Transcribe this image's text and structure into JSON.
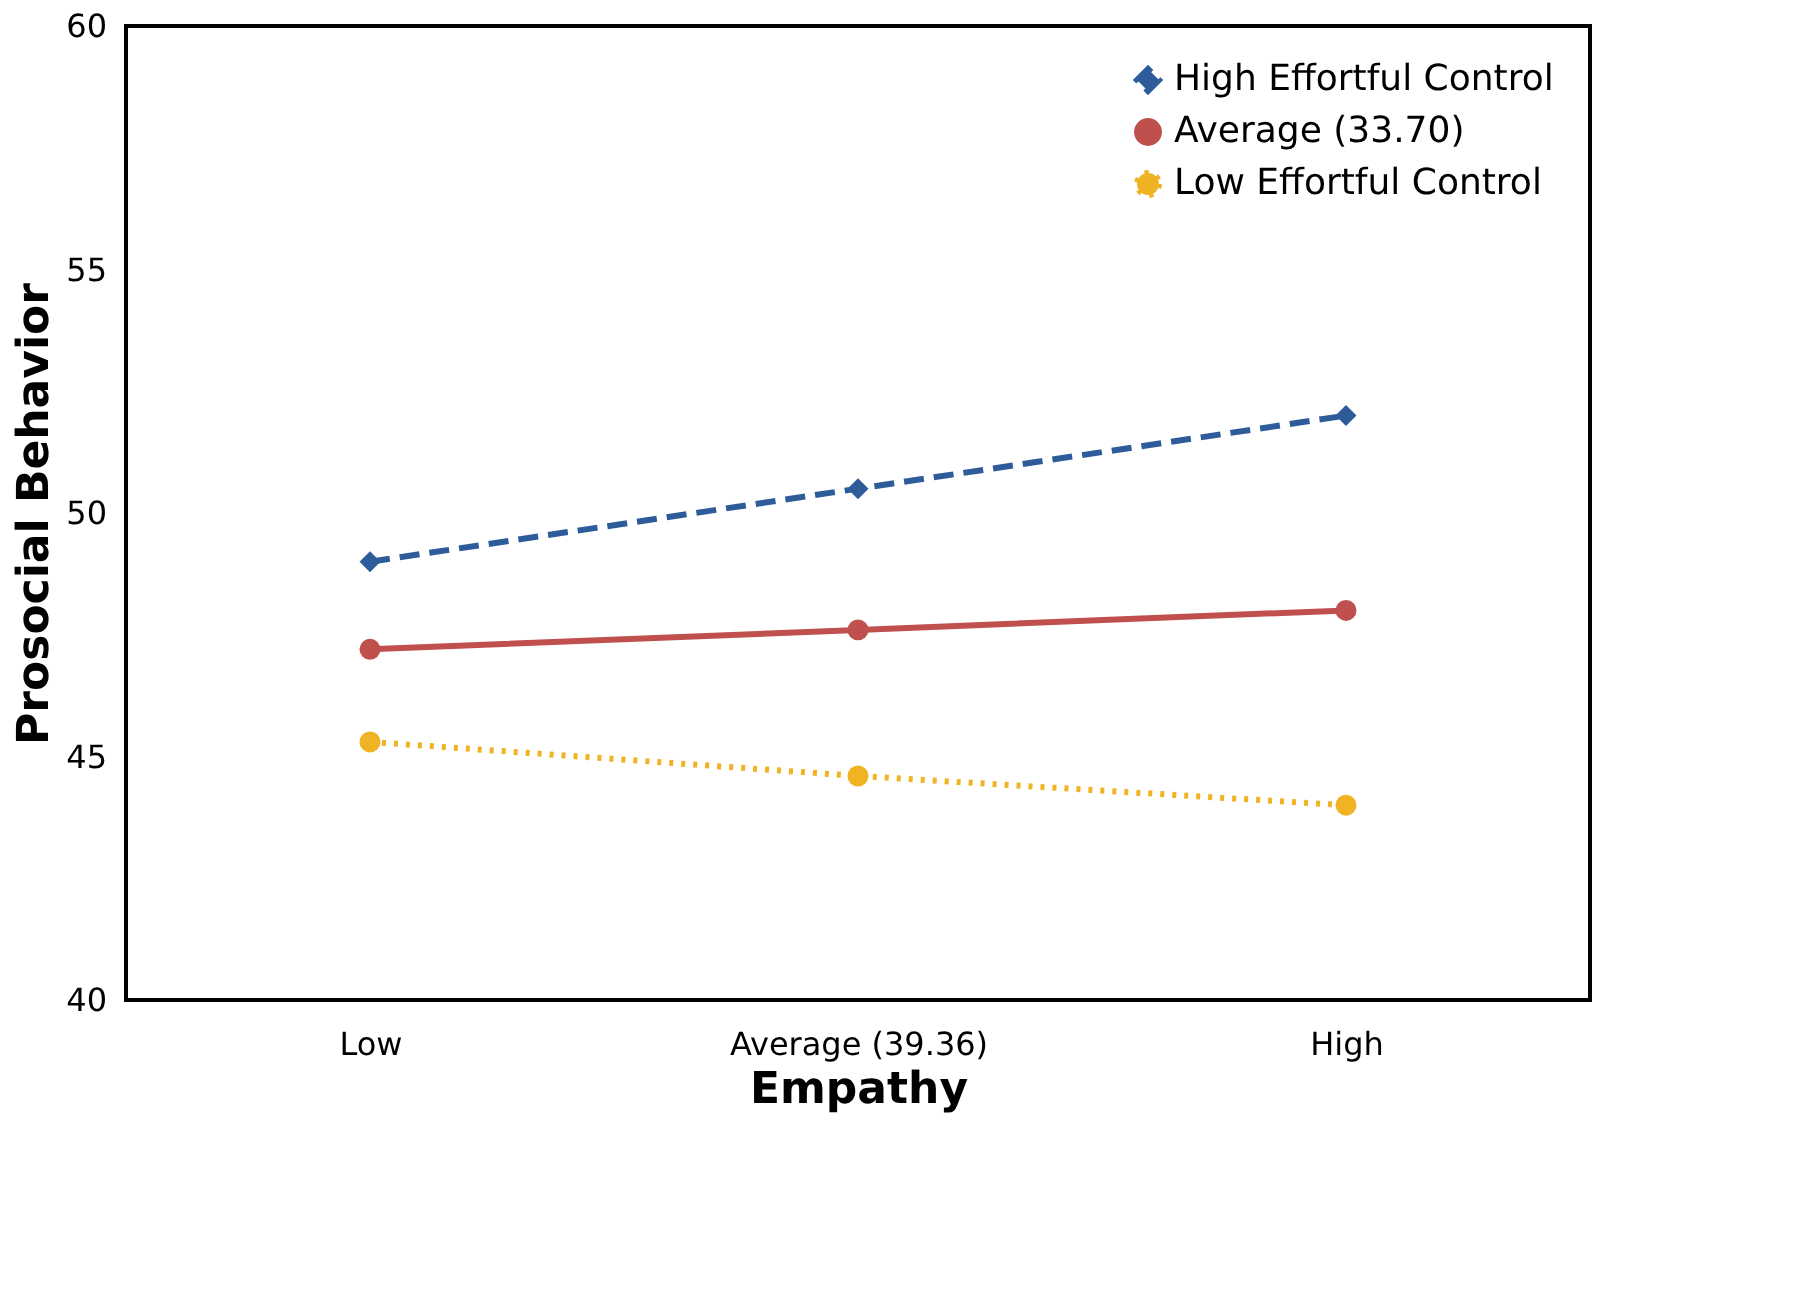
{
  "chart_data": {
    "type": "line",
    "xlabel": "Empathy",
    "ylabel": "Prosocial Behavior",
    "categories": [
      "Low",
      "Average (39.36)",
      "High"
    ],
    "ylim": [
      40,
      60
    ],
    "yticks": [
      40,
      45,
      50,
      55,
      60
    ],
    "grid": false,
    "legend": "top right",
    "series": [
      {
        "name": "High Effortful Control",
        "color": "#2e5c9a",
        "marker": "diamond",
        "line_style": "dashed",
        "values": [
          49.0,
          50.5,
          52.0
        ]
      },
      {
        "name": "Average (33.70)",
        "color": "#c0504d",
        "marker": "circle",
        "line_style": "solid",
        "values": [
          47.2,
          47.6,
          48.0
        ]
      },
      {
        "name": "Low Effortful Control",
        "color": "#f0b323",
        "marker": "circle",
        "line_style": "dotted",
        "values": [
          45.3,
          44.6,
          44.0
        ]
      }
    ]
  }
}
